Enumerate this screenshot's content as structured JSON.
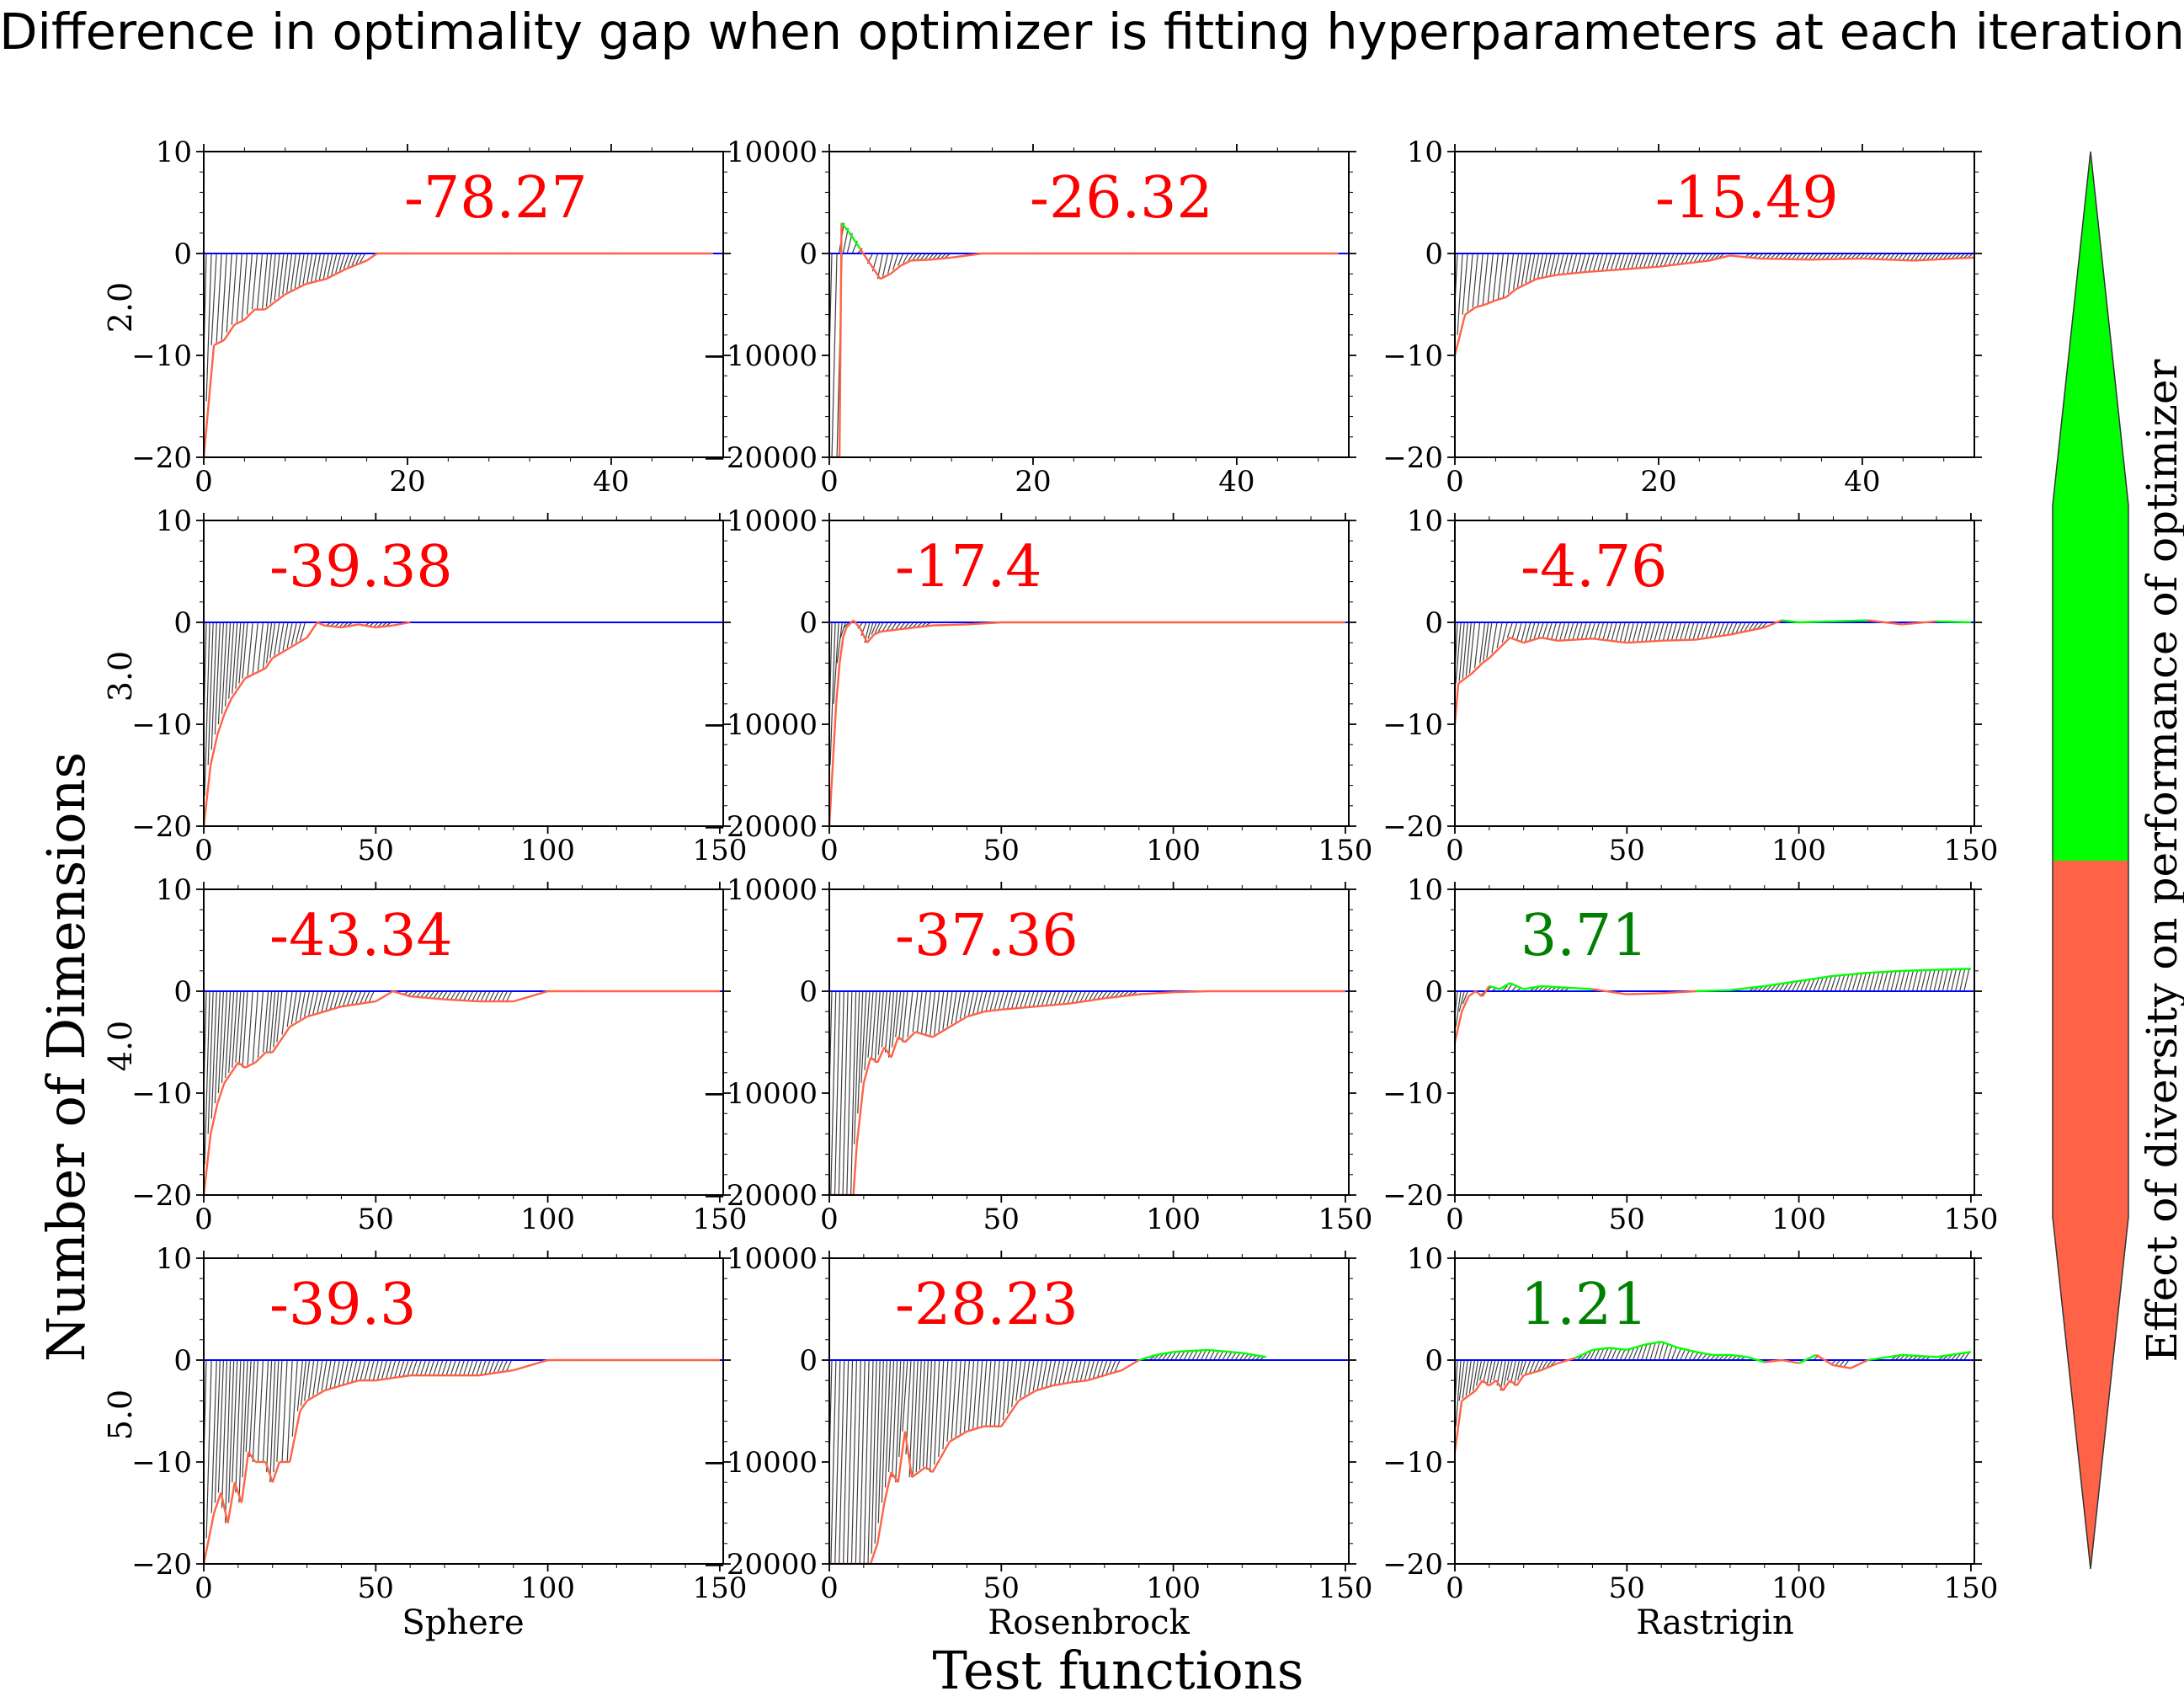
{
  "title": "Difference in optimality gap when optimizer is fitting hyperparameters at each iteration",
  "xlabel": "Test functions",
  "ylabel": "Number of Dimensions",
  "colorbar_label": "Effect of diversity on performance of optimizer",
  "colors": {
    "negative": "#ff6347",
    "positive": "#00ff00",
    "negative_text": "#ff0000",
    "positive_text": "#008000",
    "zero_line": "#0000ff",
    "hatch": "#000000"
  },
  "columns": [
    "Sphere",
    "Rosenbrock",
    "Rastrigin"
  ],
  "rows": [
    "2.0",
    "3.0",
    "4.0",
    "5.0"
  ],
  "chart_data": {
    "type": "line",
    "title": "Difference in optimality gap when optimizer is fitting hyperparameters at each iteration",
    "xlabel": "Test functions",
    "ylabel": "Number of Dimensions",
    "grid": false,
    "legend": "none",
    "panels": [
      {
        "row": "2.0",
        "col": "Sphere",
        "annotation": "-78.27",
        "xlim": [
          0,
          51
        ],
        "ylim": [
          -20,
          10
        ],
        "xticks": [
          0,
          20,
          40
        ],
        "yticks": [
          -20,
          -10,
          0,
          10
        ],
        "x": [
          0,
          1,
          2,
          3,
          4,
          5,
          6,
          8,
          10,
          12,
          14,
          16,
          17,
          20,
          30,
          40,
          50
        ],
        "y": [
          -20,
          -9,
          -8.5,
          -7,
          -6.5,
          -5.5,
          -5.5,
          -4,
          -3,
          -2.5,
          -1.5,
          -0.7,
          0,
          0,
          0,
          0,
          0
        ]
      },
      {
        "row": "2.0",
        "col": "Rosenbrock",
        "annotation": "-26.32",
        "xlim": [
          0,
          51
        ],
        "ylim": [
          -20000,
          10000
        ],
        "xticks": [
          0,
          20,
          40
        ],
        "yticks": [
          -20000,
          -10000,
          0,
          10000
        ],
        "x": [
          0,
          1,
          1.2,
          2,
          3,
          4,
          5,
          6,
          7,
          8,
          10,
          12,
          15,
          20,
          30,
          50
        ],
        "y": [
          -20000,
          -20000,
          3000,
          2000,
          500,
          -1000,
          -2500,
          -2000,
          -1200,
          -700,
          -600,
          -400,
          0,
          0,
          0,
          0
        ]
      },
      {
        "row": "2.0",
        "col": "Rastrigin",
        "annotation": "-15.49",
        "xlim": [
          0,
          51
        ],
        "ylim": [
          -20,
          10
        ],
        "xticks": [
          0,
          20,
          40
        ],
        "yticks": [
          -20,
          -10,
          0,
          10
        ],
        "x": [
          0,
          1,
          2,
          3,
          4,
          5,
          6,
          8,
          10,
          13,
          16,
          20,
          25,
          27,
          30,
          35,
          40,
          45,
          51
        ],
        "y": [
          -10,
          -6,
          -5.3,
          -5,
          -4.6,
          -4.3,
          -3.5,
          -2.5,
          -2.1,
          -1.8,
          -1.6,
          -1.3,
          -0.7,
          -0.2,
          -0.5,
          -0.6,
          -0.5,
          -0.7,
          -0.4
        ]
      },
      {
        "row": "3.0",
        "col": "Sphere",
        "annotation": "-39.38",
        "xlim": [
          0,
          151
        ],
        "ylim": [
          -20,
          10
        ],
        "xticks": [
          0,
          50,
          100,
          150
        ],
        "yticks": [
          -20,
          -10,
          0,
          10
        ],
        "x": [
          0,
          2,
          4,
          6,
          8,
          10,
          12,
          15,
          18,
          20,
          25,
          30,
          33,
          35,
          40,
          45,
          50,
          55,
          60
        ],
        "y": [
          -20,
          -14,
          -11,
          -9,
          -7.5,
          -6.5,
          -5.5,
          -5,
          -4.5,
          -3.5,
          -2.5,
          -1.5,
          0,
          -0.3,
          -0.5,
          -0.2,
          -0.5,
          -0.3,
          0
        ]
      },
      {
        "row": "3.0",
        "col": "Rosenbrock",
        "annotation": "-17.4",
        "xlim": [
          0,
          151
        ],
        "ylim": [
          -20000,
          10000
        ],
        "xticks": [
          0,
          50,
          100,
          150
        ],
        "yticks": [
          -20000,
          -10000,
          0,
          10000
        ],
        "x": [
          0,
          1,
          2,
          3,
          4,
          5,
          7,
          9,
          11,
          13,
          15,
          20,
          25,
          30,
          40,
          50,
          100,
          150
        ],
        "y": [
          -20000,
          -14000,
          -8000,
          -4000,
          -1500,
          -500,
          200,
          -600,
          -2000,
          -1200,
          -900,
          -700,
          -500,
          -300,
          -200,
          0,
          0,
          0
        ]
      },
      {
        "row": "3.0",
        "col": "Rastrigin",
        "annotation": "-4.76",
        "xlim": [
          0,
          151
        ],
        "ylim": [
          -20,
          10
        ],
        "xticks": [
          0,
          50,
          100,
          150
        ],
        "yticks": [
          -20,
          -10,
          0,
          10
        ],
        "x": [
          0,
          1,
          3,
          5,
          8,
          10,
          13,
          16,
          20,
          25,
          30,
          40,
          50,
          60,
          70,
          80,
          90,
          95,
          100,
          110,
          120,
          130,
          140,
          150
        ],
        "y": [
          -10,
          -6,
          -5.5,
          -5,
          -4,
          -3.5,
          -2.5,
          -1.5,
          -2,
          -1.5,
          -1.8,
          -1.6,
          -2,
          -1.8,
          -1.7,
          -1.2,
          -0.5,
          0.2,
          0,
          0.1,
          0.2,
          -0.2,
          0.1,
          0
        ]
      },
      {
        "row": "4.0",
        "col": "Sphere",
        "annotation": "-43.34",
        "xlim": [
          0,
          151
        ],
        "ylim": [
          -20,
          10
        ],
        "xticks": [
          0,
          50,
          100,
          150
        ],
        "yticks": [
          -20,
          -10,
          0,
          10
        ],
        "x": [
          0,
          2,
          4,
          6,
          8,
          10,
          12,
          15,
          18,
          20,
          22,
          25,
          30,
          35,
          40,
          50,
          55,
          60,
          70,
          80,
          90,
          100,
          110,
          150
        ],
        "y": [
          -20,
          -14,
          -11,
          -9,
          -8,
          -7,
          -7.5,
          -7,
          -6,
          -6,
          -5,
          -3.5,
          -2.5,
          -2,
          -1.5,
          -1,
          0,
          -0.5,
          -0.8,
          -1,
          -1,
          0,
          0,
          0
        ]
      },
      {
        "row": "4.0",
        "col": "Rosenbrock",
        "annotation": "-37.36",
        "xlim": [
          0,
          151
        ],
        "ylim": [
          -20000,
          10000
        ],
        "xticks": [
          0,
          50,
          100,
          150
        ],
        "yticks": [
          -20000,
          -10000,
          0,
          10000
        ],
        "x": [
          0,
          7,
          8,
          10,
          12,
          14,
          16,
          18,
          20,
          22,
          25,
          30,
          35,
          40,
          45,
          50,
          60,
          70,
          80,
          90,
          100,
          110,
          150
        ],
        "y": [
          -20000,
          -20000,
          -15000,
          -9000,
          -6500,
          -7000,
          -5500,
          -6500,
          -4500,
          -5000,
          -4000,
          -4500,
          -3500,
          -2500,
          -2000,
          -1800,
          -1500,
          -1200,
          -700,
          -300,
          -100,
          0,
          0
        ]
      },
      {
        "row": "4.0",
        "col": "Rastrigin",
        "annotation": "3.71",
        "xlim": [
          0,
          151
        ],
        "ylim": [
          -20,
          10
        ],
        "xticks": [
          0,
          50,
          100,
          150
        ],
        "yticks": [
          -20,
          -10,
          0,
          10
        ],
        "x": [
          0,
          2,
          4,
          6,
          8,
          10,
          13,
          16,
          20,
          25,
          30,
          40,
          50,
          60,
          70,
          80,
          90,
          100,
          110,
          120,
          130,
          140,
          150
        ],
        "y": [
          -5,
          -2,
          -0.5,
          0,
          -0.5,
          0.5,
          0.2,
          0.8,
          0.2,
          0.5,
          0.4,
          0.2,
          -0.3,
          -0.2,
          0,
          0.1,
          0.5,
          1,
          1.5,
          1.8,
          2,
          2.1,
          2.2
        ]
      },
      {
        "row": "5.0",
        "col": "Sphere",
        "annotation": "-39.3",
        "xlim": [
          0,
          151
        ],
        "ylim": [
          -20,
          10
        ],
        "xticks": [
          0,
          50,
          100,
          150
        ],
        "yticks": [
          -20,
          -10,
          0,
          10
        ],
        "x": [
          0,
          3,
          5,
          7,
          9,
          11,
          13,
          15,
          18,
          20,
          22,
          25,
          28,
          30,
          35,
          40,
          45,
          50,
          60,
          70,
          80,
          90,
          100,
          110,
          150
        ],
        "y": [
          -20,
          -15,
          -13,
          -16,
          -12,
          -14,
          -9,
          -10,
          -10,
          -12,
          -10,
          -10,
          -5,
          -4,
          -3,
          -2.5,
          -2,
          -2,
          -1.5,
          -1.5,
          -1.5,
          -1,
          0,
          0,
          0
        ]
      },
      {
        "row": "5.0",
        "col": "Rosenbrock",
        "annotation": "-28.23",
        "xlim": [
          0,
          151
        ],
        "ylim": [
          -20000,
          10000
        ],
        "xticks": [
          0,
          50,
          100,
          150
        ],
        "yticks": [
          -20000,
          -10000,
          0,
          10000
        ],
        "x": [
          0,
          12,
          14,
          16,
          18,
          20,
          22,
          24,
          26,
          28,
          30,
          35,
          40,
          45,
          50,
          55,
          60,
          65,
          70,
          75,
          80,
          85,
          90,
          95,
          100,
          110,
          120,
          127
        ],
        "y": [
          -20000,
          -20000,
          -18000,
          -14000,
          -11000,
          -12000,
          -7000,
          -11500,
          -11000,
          -10500,
          -11000,
          -8000,
          -7000,
          -6500,
          -6500,
          -4000,
          -3000,
          -2500,
          -2200,
          -2000,
          -1500,
          -1000,
          0,
          500,
          800,
          1000,
          700,
          300
        ]
      },
      {
        "row": "5.0",
        "col": "Rastrigin",
        "annotation": "1.21",
        "xlim": [
          0,
          151
        ],
        "ylim": [
          -20,
          10
        ],
        "xticks": [
          0,
          50,
          100,
          150
        ],
        "yticks": [
          -20,
          -10,
          0,
          10
        ],
        "x": [
          0,
          2,
          4,
          6,
          8,
          10,
          12,
          14,
          16,
          18,
          20,
          25,
          30,
          35,
          40,
          45,
          50,
          55,
          60,
          65,
          70,
          75,
          80,
          85,
          90,
          95,
          100,
          105,
          110,
          115,
          120,
          130,
          140,
          150
        ],
        "y": [
          -9,
          -4,
          -3.5,
          -3,
          -2,
          -2.5,
          -2,
          -3,
          -2,
          -2.5,
          -1.5,
          -1,
          -0.3,
          0.2,
          1,
          1.2,
          1,
          1.5,
          1.8,
          1.2,
          0.8,
          0.5,
          0.5,
          0.3,
          -0.2,
          0,
          -0.3,
          0.5,
          -0.5,
          -0.8,
          0,
          0.5,
          0.3,
          0.8
        ]
      }
    ]
  }
}
